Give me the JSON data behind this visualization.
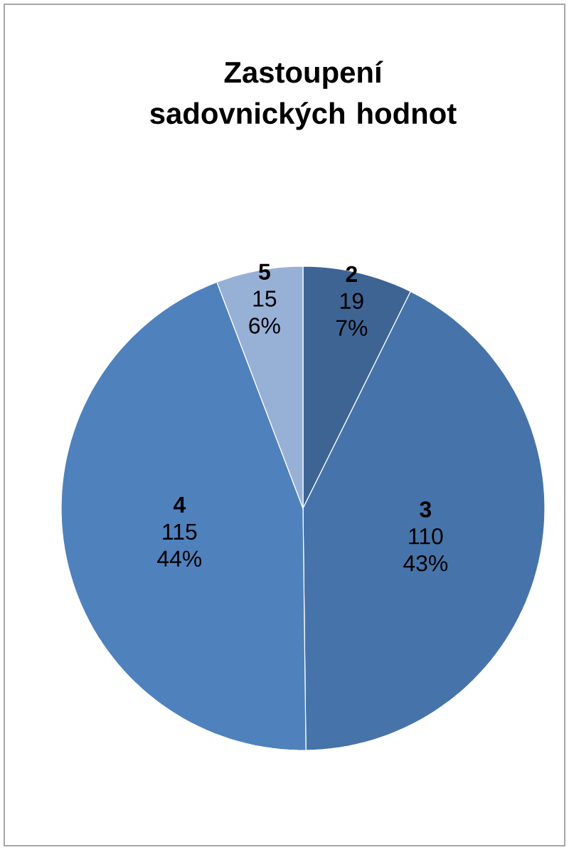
{
  "chart_data": {
    "type": "pie",
    "title": "Zastoupení sadovnických hodnot",
    "categories": [
      "2",
      "3",
      "4",
      "5"
    ],
    "values": [
      19,
      110,
      115,
      15
    ],
    "colors": [
      "#3e6494",
      "#4674aa",
      "#4f81bd",
      "#97b0d6"
    ],
    "value_labels": [
      "19 7%",
      "110 43%",
      "115 44%",
      "15 6%"
    ]
  }
}
